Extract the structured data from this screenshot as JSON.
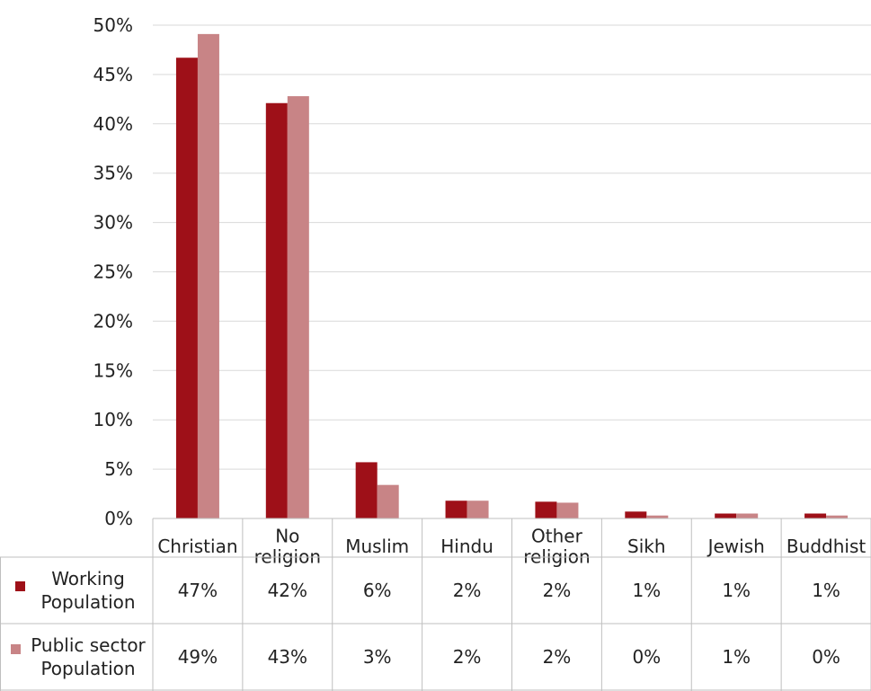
{
  "chart_data": {
    "type": "bar",
    "categories": [
      [
        "Christian"
      ],
      [
        "No",
        "religion"
      ],
      [
        "Muslim"
      ],
      [
        "Hindu"
      ],
      [
        "Other",
        "religion"
      ],
      [
        "Sikh"
      ],
      [
        "Jewish"
      ],
      [
        "Buddhist"
      ]
    ],
    "series": [
      {
        "name": [
          "Working",
          "Population"
        ],
        "color": "#9e1018",
        "values": [
          46.7,
          42.1,
          5.7,
          1.8,
          1.7,
          0.7,
          0.5,
          0.5
        ],
        "table_labels": [
          "47%",
          "42%",
          "6%",
          "2%",
          "2%",
          "1%",
          "1%",
          "1%"
        ]
      },
      {
        "name": [
          "Public sector",
          "Population"
        ],
        "color": "#c88486",
        "values": [
          49.1,
          42.8,
          3.4,
          1.8,
          1.6,
          0.3,
          0.5,
          0.3
        ],
        "table_labels": [
          "49%",
          "43%",
          "3%",
          "2%",
          "2%",
          "0%",
          "1%",
          "0%"
        ]
      }
    ],
    "y_ticks": [
      "0%",
      "5%",
      "10%",
      "15%",
      "20%",
      "25%",
      "30%",
      "35%",
      "40%",
      "45%",
      "50%"
    ],
    "ylim": [
      0,
      50
    ],
    "grid": true,
    "legend_placement": "data table"
  }
}
